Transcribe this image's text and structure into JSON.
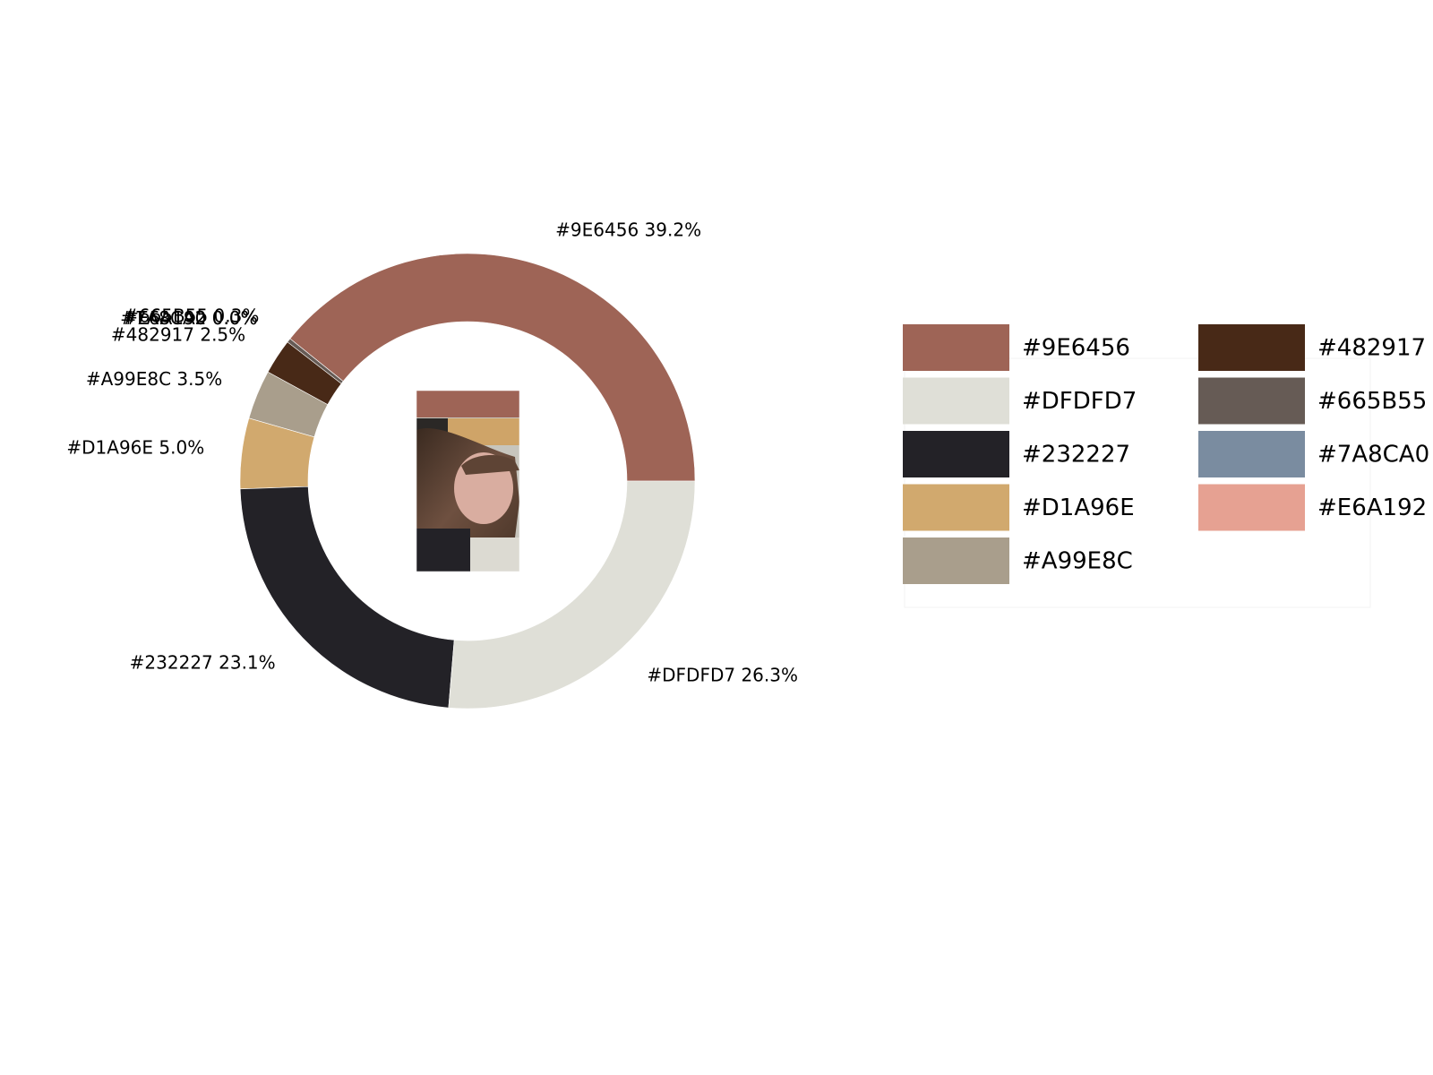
{
  "chart_data": {
    "type": "pie",
    "variant": "donut",
    "title": "",
    "slices": [
      {
        "label": "#9E6456",
        "percent": 39.2,
        "percent_text": "39.2%",
        "color": "#9E6456"
      },
      {
        "label": "#665B55",
        "percent": 0.3,
        "percent_text": "0.3%",
        "color": "#665B55"
      },
      {
        "label": "#7A8CA0",
        "percent": 0.0,
        "percent_text": "0.0%",
        "color": "#7A8CA0"
      },
      {
        "label": "#E6A192",
        "percent": 0.0,
        "percent_text": "0.0%",
        "color": "#E6A192"
      },
      {
        "label": "#482917",
        "percent": 2.5,
        "percent_text": "2.5%",
        "color": "#482917"
      },
      {
        "label": "#A99E8C",
        "percent": 3.5,
        "percent_text": "3.5%",
        "color": "#A99E8C"
      },
      {
        "label": "#D1A96E",
        "percent": 5.0,
        "percent_text": "5.0%",
        "color": "#D1A96E"
      },
      {
        "label": "#232227",
        "percent": 23.1,
        "percent_text": "23.1%",
        "color": "#232227"
      },
      {
        "label": "#DFDFD7",
        "percent": 26.3,
        "percent_text": "26.3%",
        "color": "#DFDFD7"
      }
    ],
    "legend": {
      "placement": "right",
      "columns": 2,
      "entries": [
        {
          "label": "#9E6456",
          "color": "#9E6456"
        },
        {
          "label": "#DFDFD7",
          "color": "#DFDFD7"
        },
        {
          "label": "#232227",
          "color": "#232227"
        },
        {
          "label": "#D1A96E",
          "color": "#D1A96E"
        },
        {
          "label": "#A99E8C",
          "color": "#A99E8C"
        },
        {
          "label": "#482917",
          "color": "#482917"
        },
        {
          "label": "#665B55",
          "color": "#665B55"
        },
        {
          "label": "#7A8CA0",
          "color": "#7A8CA0"
        },
        {
          "label": "#E6A192",
          "color": "#E6A192"
        }
      ]
    },
    "center_image": "photo-thumbnail"
  }
}
